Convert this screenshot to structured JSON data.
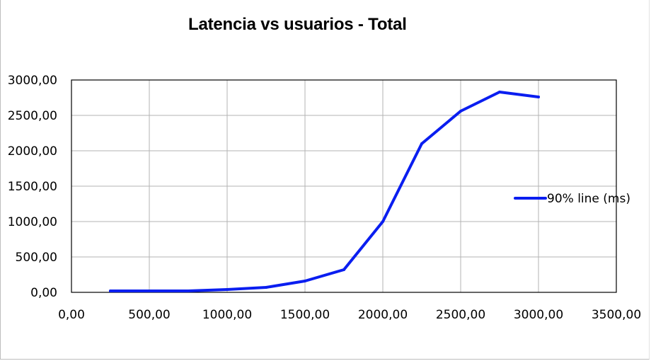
{
  "chart_data": {
    "type": "line",
    "title": "Latencia vs usuarios - Total",
    "xlabel": "",
    "ylabel": "",
    "xlim": [
      0,
      3500
    ],
    "ylim": [
      0,
      3000
    ],
    "x_ticks": [
      0,
      500,
      1000,
      1500,
      2000,
      2500,
      3000,
      3500
    ],
    "y_ticks": [
      0,
      500,
      1000,
      1500,
      2000,
      2500,
      3000
    ],
    "x_tick_labels": [
      "0,00",
      "500,00",
      "1000,00",
      "1500,00",
      "2000,00",
      "2500,00",
      "3000,00",
      "3500,00"
    ],
    "y_tick_labels": [
      "0,00",
      "500,00",
      "1000,00",
      "1500,00",
      "2000,00",
      "2500,00",
      "3000,00"
    ],
    "grid": true,
    "legend_position": "right",
    "series": [
      {
        "name": "90% line (ms)",
        "color": "#0a1ef0",
        "x": [
          250,
          500,
          750,
          1000,
          1250,
          1500,
          1750,
          2000,
          2250,
          2500,
          2750,
          3000
        ],
        "y": [
          20,
          20,
          20,
          40,
          70,
          160,
          320,
          1000,
          2100,
          2560,
          2830,
          2760
        ]
      }
    ]
  }
}
